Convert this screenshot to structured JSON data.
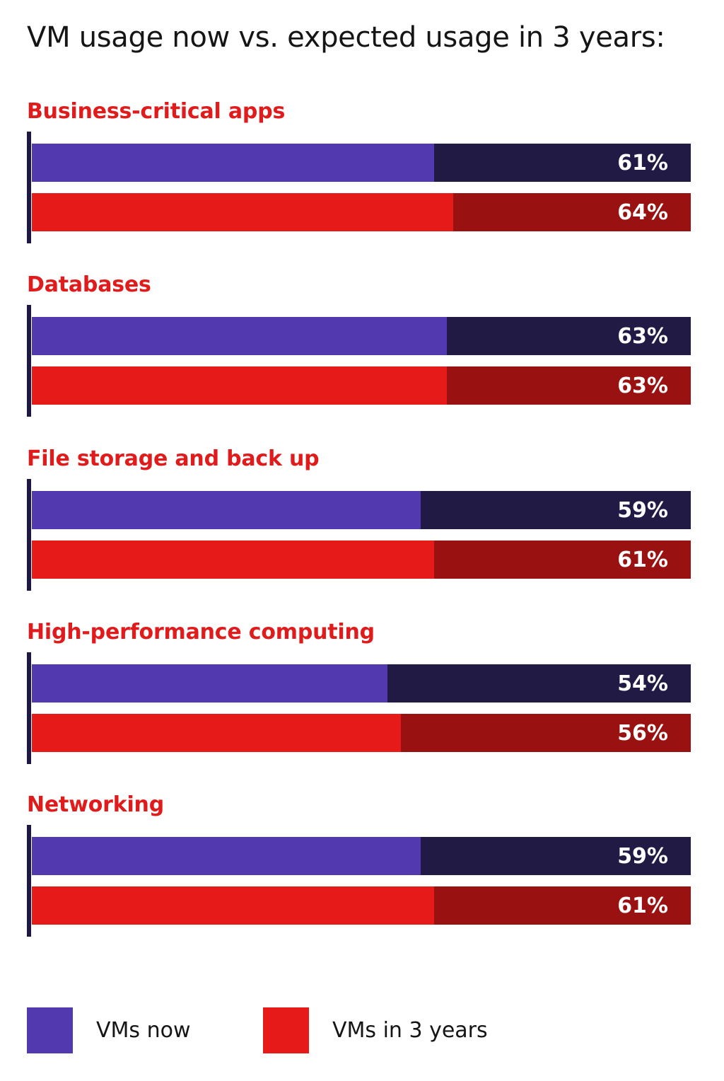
{
  "chart_data": {
    "type": "bar",
    "orientation": "horizontal",
    "title": "VM usage now vs. expected usage in 3 years:",
    "categories": [
      "Business-critical apps",
      "Databases",
      "File storage and back up",
      "High-performance computing",
      "Networking"
    ],
    "series": [
      {
        "name": "VMs now",
        "values": [
          61,
          63,
          59,
          54,
          59
        ],
        "labels": [
          "61%",
          "63%",
          "59%",
          "54%",
          "59%"
        ],
        "color": "#5239b0",
        "track_color": "#201a44"
      },
      {
        "name": "VMs in 3 years",
        "values": [
          64,
          63,
          61,
          56,
          61
        ],
        "labels": [
          "64%",
          "63%",
          "61%",
          "56%",
          "61%"
        ],
        "color": "#e71a1a",
        "track_color": "#9a1111"
      }
    ],
    "xlim": [
      0,
      100
    ],
    "unit": "%",
    "legend_position": "bottom",
    "label_color": "#e11b1b"
  }
}
